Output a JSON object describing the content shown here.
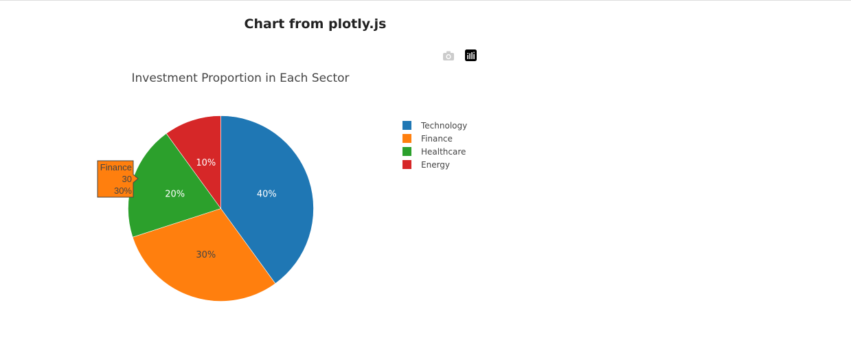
{
  "page": {
    "heading": "Chart from plotly.js"
  },
  "modebar": {
    "buttons": [
      {
        "icon": "camera-icon"
      },
      {
        "icon": "plotly-logo-icon"
      }
    ]
  },
  "chart_data": {
    "type": "pie",
    "title": "Investment Proportion in Each Sector",
    "labels": [
      "Technology",
      "Finance",
      "Healthcare",
      "Energy"
    ],
    "values": [
      40,
      30,
      20,
      10
    ],
    "colors": [
      "#1f77b4",
      "#ff7f0e",
      "#2ca02c",
      "#d62728"
    ],
    "text_labels": [
      "40%",
      "30%",
      "20%",
      "10%"
    ],
    "legend": {
      "placement": "top-right",
      "entries": [
        "Technology",
        "Finance",
        "Healthcare",
        "Energy"
      ]
    },
    "hover": {
      "label": "Finance",
      "value": "30",
      "percent": "30%"
    }
  }
}
